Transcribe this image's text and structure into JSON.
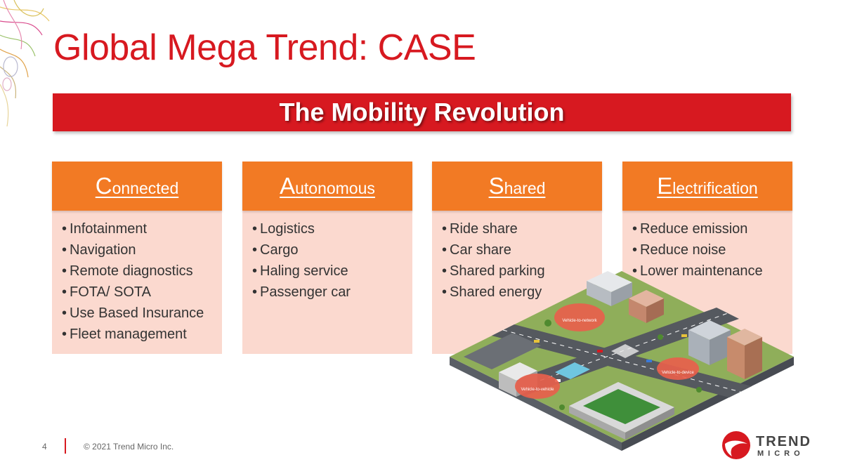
{
  "slide": {
    "title": "Global Mega Trend: CASE",
    "banner": "The Mobility Revolution"
  },
  "cards": [
    {
      "initial": "C",
      "rest": "onnected",
      "items": [
        "Infotainment",
        "Navigation",
        "Remote diagnostics",
        "FOTA/ SOTA",
        "Use Based Insurance",
        "Fleet management"
      ]
    },
    {
      "initial": "A",
      "rest": "utonomous",
      "items": [
        "Logistics",
        "Cargo",
        "Haling service",
        "Passenger car"
      ]
    },
    {
      "initial": "S",
      "rest": "hared",
      "items": [
        "Ride share",
        "Car share",
        "Shared parking",
        "Shared energy"
      ]
    },
    {
      "initial": "E",
      "rest": "lectrification",
      "items": [
        "Reduce emission",
        "Reduce noise",
        "Lower maintenance"
      ]
    }
  ],
  "illustration": {
    "labels": [
      "Vehicle-to-network",
      "Vehicle-to-vehicle",
      "Vehicle-to-device"
    ]
  },
  "footer": {
    "page_number": "4",
    "copyright": "© 2021 Trend Micro Inc."
  },
  "logo": {
    "line1": "TREND",
    "line2": "MICRO"
  },
  "colors": {
    "brand_red": "#d71920",
    "header_orange": "#f27a24",
    "card_fill": "#fbd9cf"
  }
}
